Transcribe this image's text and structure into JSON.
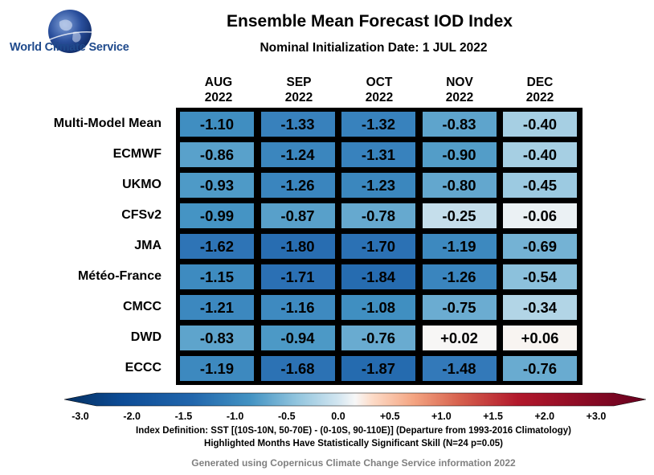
{
  "logo": {
    "text": "World Climate Service"
  },
  "chart_data": {
    "type": "heatmap",
    "title": "Ensemble Mean Forecast IOD Index",
    "subtitle": "Nominal Initialization Date: 1 JUL 2022",
    "columns": [
      {
        "month": "AUG",
        "year": "2022"
      },
      {
        "month": "SEP",
        "year": "2022"
      },
      {
        "month": "OCT",
        "year": "2022"
      },
      {
        "month": "NOV",
        "year": "2022"
      },
      {
        "month": "DEC",
        "year": "2022"
      }
    ],
    "rows": [
      "Multi-Model Mean",
      "ECMWF",
      "UKMO",
      "CFSv2",
      "JMA",
      "Météo-France",
      "CMCC",
      "DWD",
      "ECCC"
    ],
    "values": [
      [
        -1.1,
        -1.33,
        -1.32,
        -0.83,
        -0.4
      ],
      [
        -0.86,
        -1.24,
        -1.31,
        -0.9,
        -0.4
      ],
      [
        -0.93,
        -1.26,
        -1.23,
        -0.8,
        -0.45
      ],
      [
        -0.99,
        -0.87,
        -0.78,
        -0.25,
        -0.06
      ],
      [
        -1.62,
        -1.8,
        -1.7,
        -1.19,
        -0.69
      ],
      [
        -1.15,
        -1.71,
        -1.84,
        -1.26,
        -0.54
      ],
      [
        -1.21,
        -1.16,
        -1.08,
        -0.75,
        -0.34
      ],
      [
        -0.83,
        -0.94,
        -0.76,
        0.02,
        0.06
      ],
      [
        -1.19,
        -1.68,
        -1.87,
        -1.48,
        -0.76
      ]
    ],
    "labels": [
      [
        "-1.10",
        "-1.33",
        "-1.32",
        "-0.83",
        "-0.40"
      ],
      [
        "-0.86",
        "-1.24",
        "-1.31",
        "-0.90",
        "-0.40"
      ],
      [
        "-0.93",
        "-1.26",
        "-1.23",
        "-0.80",
        "-0.45"
      ],
      [
        "-0.99",
        "-0.87",
        "-0.78",
        "-0.25",
        "-0.06"
      ],
      [
        "-1.62",
        "-1.80",
        "-1.70",
        "-1.19",
        "-0.69"
      ],
      [
        "-1.15",
        "-1.71",
        "-1.84",
        "-1.26",
        "-0.54"
      ],
      [
        "-1.21",
        "-1.16",
        "-1.08",
        "-0.75",
        "-0.34"
      ],
      [
        "-0.83",
        "-0.94",
        "-0.76",
        "+0.02",
        "+0.06"
      ],
      [
        "-1.19",
        "-1.68",
        "-1.87",
        "-1.48",
        "-0.76"
      ]
    ],
    "colorbar": {
      "min": -3.0,
      "max": 3.0,
      "ticks": [
        "-3.0",
        "-2.0",
        "-1.5",
        "-1.0",
        "-0.5",
        "0.0",
        "+0.5",
        "+1.0",
        "+1.5",
        "+2.0",
        "+3.0"
      ],
      "tick_values": [
        -3.0,
        -2.0,
        -1.5,
        -1.0,
        -0.5,
        0.0,
        0.5,
        1.0,
        1.5,
        2.0,
        3.0
      ],
      "negative_color": "#053061",
      "zero_color": "#f7f7f7",
      "positive_color": "#67001f"
    }
  },
  "footnotes": [
    "Index Definition: SST [(10S-10N, 50-70E) - (0-10S, 90-110E)] (Departure from 1993-2016 Climatology)",
    "Highlighted Months Have Statistically Significant Skill (N=24 p=0.05)"
  ],
  "credit": "Generated using Copernicus Climate Change Service information 2022"
}
